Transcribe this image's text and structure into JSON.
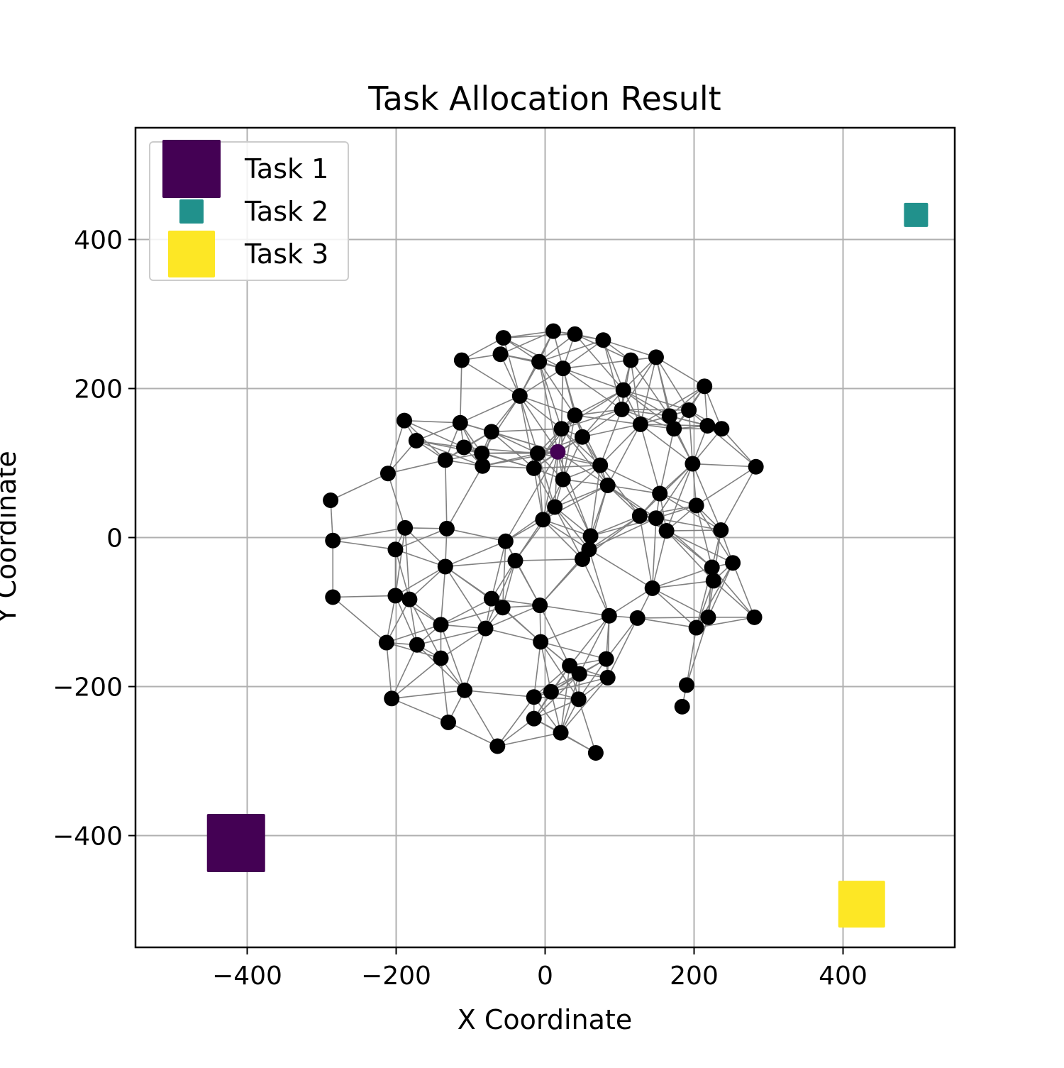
{
  "chart_data": {
    "type": "scatter",
    "title": "Task Allocation Result",
    "xlabel": "X Coordinate",
    "ylabel": "Y Coordinate",
    "xlim": [
      -550,
      550
    ],
    "ylim": [
      -550,
      550
    ],
    "grid": true,
    "legend_position": "upper-left",
    "xticks": [
      -400,
      -200,
      0,
      200,
      400
    ],
    "yticks": [
      -400,
      -200,
      0,
      200,
      400
    ],
    "xtick_labels": [
      "−400",
      "−200",
      "0",
      "200",
      "400"
    ],
    "ytick_labels": [
      "−400",
      "−200",
      "0",
      "200",
      "400"
    ],
    "colors": {
      "task1": "#440154",
      "task2": "#21918c",
      "task3": "#fde725",
      "agent": "#000000",
      "edge": "#808080",
      "grid": "#b0b0b0"
    },
    "tasks": [
      {
        "name": "Task 1",
        "x": -415,
        "y": -410,
        "size": "large",
        "color": "#440154"
      },
      {
        "name": "Task 2",
        "x": 498,
        "y": 433,
        "size": "small",
        "color": "#21918c"
      },
      {
        "name": "Task 3",
        "x": 425,
        "y": -492,
        "size": "medium",
        "color": "#fde725"
      }
    ],
    "legend": [
      {
        "label": "Task 1",
        "color": "#440154",
        "size": "large"
      },
      {
        "label": "Task 2",
        "color": "#21918c",
        "size": "small"
      },
      {
        "label": "Task 3",
        "color": "#fde725",
        "size": "medium"
      }
    ],
    "assigned_agent": {
      "x": 17,
      "y": 115,
      "color": "#440154",
      "task": "Task 1"
    },
    "agents": [
      {
        "x": 11,
        "y": 277
      },
      {
        "x": 40,
        "y": 273
      },
      {
        "x": -56,
        "y": 268
      },
      {
        "x": 78,
        "y": 265
      },
      {
        "x": -60,
        "y": 246
      },
      {
        "x": 149,
        "y": 242
      },
      {
        "x": -112,
        "y": 238
      },
      {
        "x": 115,
        "y": 238
      },
      {
        "x": -8,
        "y": 236
      },
      {
        "x": 24,
        "y": 227
      },
      {
        "x": 214,
        "y": 203
      },
      {
        "x": 105,
        "y": 198
      },
      {
        "x": -34,
        "y": 190
      },
      {
        "x": 103,
        "y": 172
      },
      {
        "x": 193,
        "y": 171
      },
      {
        "x": 40,
        "y": 164
      },
      {
        "x": 167,
        "y": 163
      },
      {
        "x": -189,
        "y": 157
      },
      {
        "x": -114,
        "y": 154
      },
      {
        "x": 128,
        "y": 152
      },
      {
        "x": 218,
        "y": 150
      },
      {
        "x": 237,
        "y": 146
      },
      {
        "x": 22,
        "y": 146
      },
      {
        "x": 173,
        "y": 146
      },
      {
        "x": -72,
        "y": 142
      },
      {
        "x": 50,
        "y": 135
      },
      {
        "x": -173,
        "y": 130
      },
      {
        "x": -109,
        "y": 121
      },
      {
        "x": -85,
        "y": 113
      },
      {
        "x": -10,
        "y": 113
      },
      {
        "x": -134,
        "y": 104
      },
      {
        "x": 198,
        "y": 99
      },
      {
        "x": 74,
        "y": 97
      },
      {
        "x": 283,
        "y": 95
      },
      {
        "x": -84,
        "y": 96
      },
      {
        "x": -15,
        "y": 93
      },
      {
        "x": -211,
        "y": 86
      },
      {
        "x": 24,
        "y": 78
      },
      {
        "x": 84,
        "y": 70
      },
      {
        "x": 154,
        "y": 59
      },
      {
        "x": -288,
        "y": 50
      },
      {
        "x": 203,
        "y": 43
      },
      {
        "x": 13,
        "y": 41
      },
      {
        "x": 127,
        "y": 29
      },
      {
        "x": 149,
        "y": 26
      },
      {
        "x": -3,
        "y": 24
      },
      {
        "x": -188,
        "y": 13
      },
      {
        "x": -132,
        "y": 12
      },
      {
        "x": 236,
        "y": 10
      },
      {
        "x": 163,
        "y": 9
      },
      {
        "x": 61,
        "y": 2
      },
      {
        "x": -285,
        "y": -4
      },
      {
        "x": -53,
        "y": -5
      },
      {
        "x": 59,
        "y": -16
      },
      {
        "x": -201,
        "y": -16
      },
      {
        "x": 50,
        "y": -29
      },
      {
        "x": -40,
        "y": -31
      },
      {
        "x": 252,
        "y": -34
      },
      {
        "x": -134,
        "y": -39
      },
      {
        "x": 224,
        "y": -40
      },
      {
        "x": 226,
        "y": -58
      },
      {
        "x": 144,
        "y": -68
      },
      {
        "x": -285,
        "y": -80
      },
      {
        "x": -201,
        "y": -78
      },
      {
        "x": -182,
        "y": -83
      },
      {
        "x": -72,
        "y": -82
      },
      {
        "x": -57,
        "y": -94
      },
      {
        "x": -7,
        "y": -91
      },
      {
        "x": 86,
        "y": -105
      },
      {
        "x": 124,
        "y": -108
      },
      {
        "x": 219,
        "y": -107
      },
      {
        "x": 281,
        "y": -107
      },
      {
        "x": -140,
        "y": -117
      },
      {
        "x": -80,
        "y": -122
      },
      {
        "x": 203,
        "y": -121
      },
      {
        "x": -213,
        "y": -141
      },
      {
        "x": -172,
        "y": -144
      },
      {
        "x": -6,
        "y": -140
      },
      {
        "x": -140,
        "y": -162
      },
      {
        "x": 82,
        "y": -163
      },
      {
        "x": 33,
        "y": -172
      },
      {
        "x": 46,
        "y": -183
      },
      {
        "x": 84,
        "y": -188
      },
      {
        "x": 190,
        "y": -198
      },
      {
        "x": -108,
        "y": -205
      },
      {
        "x": 8,
        "y": -207
      },
      {
        "x": -15,
        "y": -214
      },
      {
        "x": -206,
        "y": -216
      },
      {
        "x": 45,
        "y": -217
      },
      {
        "x": 184,
        "y": -227
      },
      {
        "x": -15,
        "y": -243
      },
      {
        "x": -130,
        "y": -248
      },
      {
        "x": 21,
        "y": -262
      },
      {
        "x": -64,
        "y": -280
      },
      {
        "x": 68,
        "y": -289
      }
    ]
  }
}
